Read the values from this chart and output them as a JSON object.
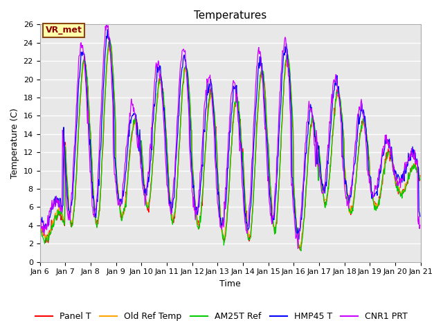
{
  "title": "Temperatures",
  "ylabel": "Temperature (C)",
  "xlabel": "Time",
  "annotation": "VR_met",
  "ylim": [
    0,
    26
  ],
  "x_tick_labels": [
    "Jan 6",
    "Jan 7",
    "Jan 8",
    "Jan 9",
    "Jan 10",
    "Jan 11",
    "Jan 12",
    "Jan 13",
    "Jan 14",
    "Jan 15",
    "Jan 16",
    "Jan 17",
    "Jan 18",
    "Jan 19",
    "Jan 20",
    "Jan 21"
  ],
  "series_names": [
    "Panel T",
    "Old Ref Temp",
    "AM25T Ref",
    "HMP45 T",
    "CNR1 PRT"
  ],
  "series_colors": [
    "#ff0000",
    "#ffa500",
    "#00cc00",
    "#0000ff",
    "#cc00ff"
  ],
  "title_fontsize": 11,
  "axis_fontsize": 9,
  "tick_fontsize": 8,
  "legend_fontsize": 9,
  "day_peaks": [
    5.5,
    22.0,
    24.0,
    15.5,
    20.0,
    21.5,
    18.5,
    18.0,
    21.0,
    22.5,
    15.5,
    18.5,
    15.5,
    12.0,
    10.5
  ],
  "day_mins": [
    2.5,
    4.0,
    4.0,
    5.0,
    6.0,
    4.5,
    4.0,
    2.5,
    2.5,
    3.5,
    1.5,
    6.5,
    5.5,
    6.0,
    7.5
  ]
}
